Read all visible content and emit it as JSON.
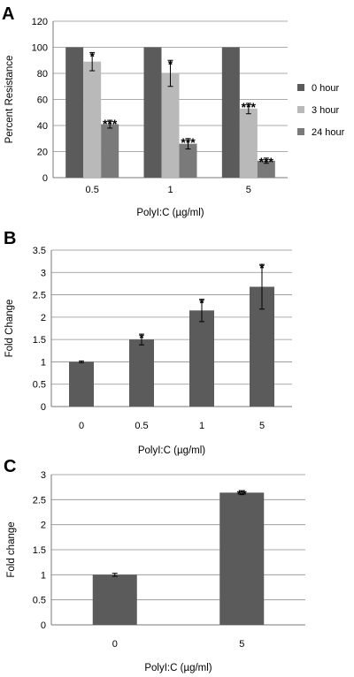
{
  "chart_data": [
    {
      "type": "bar",
      "panel": "A",
      "categories": [
        "0.5",
        "1",
        "5"
      ],
      "series": [
        {
          "name": "0 hour",
          "color": "#5b5b5b",
          "values": [
            100,
            100,
            100
          ],
          "errors": [
            0,
            0,
            0
          ],
          "annotations": [
            "",
            "",
            ""
          ]
        },
        {
          "name": "3 hour",
          "color": "#b9b9b9",
          "values": [
            89,
            80,
            53
          ],
          "errors": [
            7,
            10,
            4
          ],
          "annotations": [
            "*",
            "*",
            "***"
          ]
        },
        {
          "name": "24 hour",
          "color": "#7a7a7a",
          "values": [
            41,
            26,
            13
          ],
          "errors": [
            3,
            4,
            2
          ],
          "annotations": [
            "***",
            "***",
            "***"
          ]
        }
      ],
      "yticks": [
        "0",
        "20",
        "40",
        "60",
        "80",
        "100",
        "120"
      ],
      "ylim": [
        0,
        120
      ],
      "xlabel": "PolyI:C (µg/ml)",
      "ylabel": "Percent Resistance",
      "legend": "right",
      "grid": true
    },
    {
      "type": "bar",
      "panel": "B",
      "categories": [
        "0",
        "0.5",
        "1",
        "5"
      ],
      "series": [
        {
          "color": "#5b5b5b",
          "values": [
            1,
            1.5,
            2.15,
            2.68
          ],
          "errors": [
            0.02,
            0.12,
            0.25,
            0.5
          ],
          "annotations": [
            "",
            "*",
            "*",
            "*"
          ]
        }
      ],
      "yticks": [
        "0",
        "0.5",
        "1",
        "1.5",
        "2",
        "2.5",
        "3",
        "3.5"
      ],
      "ylim": [
        0,
        3.5
      ],
      "xlabel": "PolyI:C (µg/ml)",
      "ylabel": "Fold Change",
      "grid": true
    },
    {
      "type": "bar",
      "panel": "C",
      "categories": [
        "0",
        "5"
      ],
      "series": [
        {
          "color": "#5b5b5b",
          "values": [
            1,
            2.64
          ],
          "errors": [
            0.03,
            0.04
          ],
          "annotations": [
            "",
            "**"
          ]
        }
      ],
      "yticks": [
        "0",
        "0.5",
        "1",
        "1.5",
        "2",
        "2.5",
        "3"
      ],
      "ylim": [
        0,
        3
      ],
      "xlabel": "PolyI:C (µg/ml)",
      "ylabel": "Fold change",
      "grid": true
    }
  ]
}
